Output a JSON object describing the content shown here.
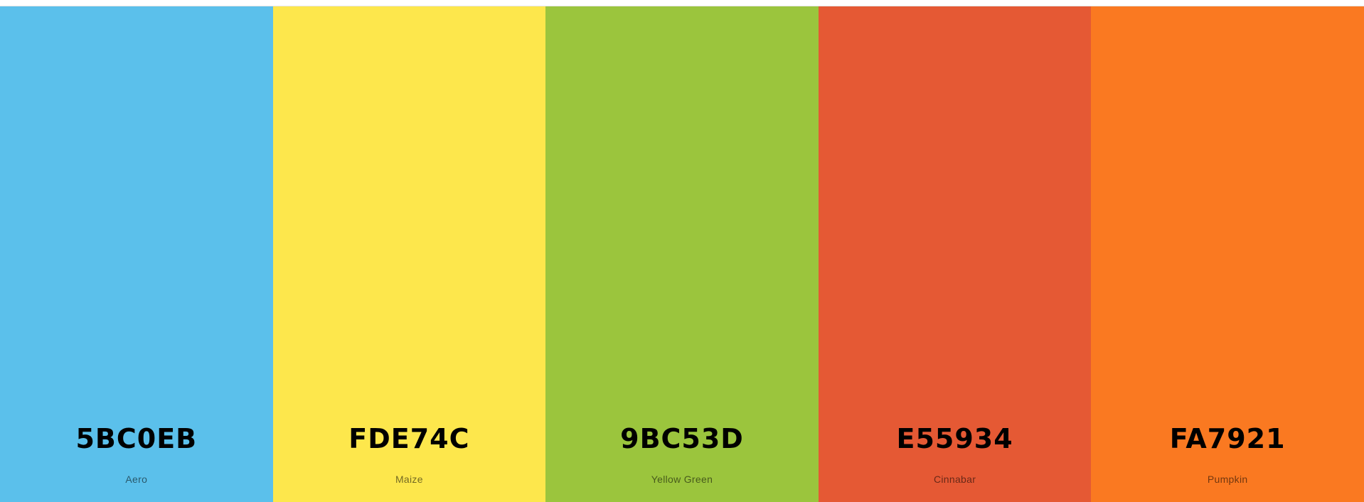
{
  "palette": {
    "swatches": [
      {
        "hex": "5BC0EB",
        "name": "Aero",
        "color": "#5BC0EB"
      },
      {
        "hex": "FDE74C",
        "name": "Maize",
        "color": "#FDE74C"
      },
      {
        "hex": "9BC53D",
        "name": "Yellow Green",
        "color": "#9BC53D"
      },
      {
        "hex": "E55934",
        "name": "Cinnabar",
        "color": "#E55934"
      },
      {
        "hex": "FA7921",
        "name": "Pumpkin",
        "color": "#FA7921"
      }
    ]
  }
}
